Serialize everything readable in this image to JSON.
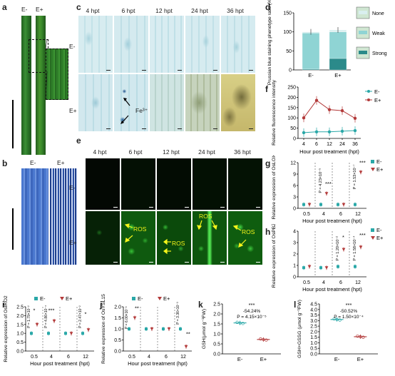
{
  "panel_labels": {
    "a": "a",
    "b": "b",
    "c": "c",
    "d": "d",
    "e": "e",
    "f": "f",
    "g": "g",
    "h": "h",
    "i": "i",
    "j": "j",
    "k": "k",
    "l": "l"
  },
  "groups": {
    "neg": "E-",
    "pos": "E+"
  },
  "timepoints": [
    "4 hpt",
    "6 hpt",
    "12 hpt",
    "24 hpt",
    "36 hpt"
  ],
  "annotations": {
    "fe": "Fe³⁺",
    "ros": "ROS"
  },
  "colors": {
    "neg": "#2aa8a8",
    "pos": "#b33a3a",
    "leaf_green": "#2f7a2a",
    "prussian": "#3a6cc4"
  },
  "d_legend": [
    "None",
    "Weak",
    "Strong"
  ],
  "chart_data": [
    {
      "panel": "d",
      "type": "bar",
      "ylabel": "Prussian blue staining phenotype ratio (%)",
      "ylim": [
        0,
        150
      ],
      "yticks": [
        0,
        50,
        100,
        150
      ],
      "categories": [
        "E-",
        "E+"
      ],
      "series": [
        {
          "name": "Strong",
          "values": [
            2,
            30
          ]
        },
        {
          "name": "Weak",
          "values": [
            95,
            70
          ]
        },
        {
          "name": "None",
          "values": [
            3,
            5
          ]
        }
      ]
    },
    {
      "panel": "f",
      "type": "line",
      "ylabel": "Relative fluorescence intensity",
      "xlabel": "Hour post treatment (hpt)",
      "ylim": [
        0,
        250
      ],
      "yticks": [
        0,
        50,
        100,
        150,
        200,
        250
      ],
      "x": [
        4,
        6,
        12,
        24,
        36
      ],
      "series": [
        {
          "name": "E-",
          "values": [
            28,
            32,
            32,
            35,
            38
          ]
        },
        {
          "name": "E+",
          "values": [
            100,
            185,
            140,
            135,
            98
          ]
        }
      ]
    },
    {
      "panel": "g",
      "type": "scatter",
      "ylabel": "Relative expression of OsLOX2",
      "xlabel": "Hour post treatment (hpt)",
      "ylim": [
        0,
        12
      ],
      "yticks": [
        0,
        3,
        6,
        9,
        12
      ],
      "x": [
        "0.5",
        "4",
        "6",
        "12"
      ],
      "series": [
        {
          "name": "E-",
          "values": [
            1,
            1,
            1,
            1
          ]
        },
        {
          "name": "E+",
          "values": [
            1,
            3.9,
            1,
            9.5
          ]
        }
      ],
      "annotations": [
        "***",
        "P = 4.23×10⁻⁵",
        "***",
        "P = 1.53×10⁻⁷"
      ]
    },
    {
      "panel": "h",
      "type": "scatter",
      "ylabel": "Relative expression of OsPBZ1",
      "xlabel": "Hour post treatment (hpt)",
      "ylim": [
        0,
        4
      ],
      "yticks": [
        0,
        1,
        2,
        3,
        4
      ],
      "x": [
        "0.5",
        "4",
        "6",
        "12"
      ],
      "series": [
        {
          "name": "E-",
          "values": [
            0.8,
            0.8,
            0.9,
            0.9
          ]
        },
        {
          "name": "E+",
          "values": [
            0.9,
            0.8,
            2.4,
            2.6
          ]
        }
      ],
      "annotations": [
        "*",
        "P = 1.20×10⁻²",
        "***",
        "P = 1.58×10⁻⁴"
      ]
    },
    {
      "panel": "i",
      "type": "scatter",
      "ylabel": "Relative expression of OsIRO2",
      "xlabel": "Hour post treatment (hpt)",
      "ylim": [
        0,
        2.5
      ],
      "yticks": [
        0,
        0.5,
        1.0,
        1.5,
        2.0,
        2.5
      ],
      "x": [
        "0.5",
        "4",
        "6",
        "12"
      ],
      "series": [
        {
          "name": "E-",
          "values": [
            1,
            1,
            1,
            1
          ]
        },
        {
          "name": "E+",
          "values": [
            1.5,
            1.7,
            1,
            1.2
          ]
        }
      ],
      "annotations": [
        "*",
        "P = 1.79×10⁻²",
        "***",
        "P = 4.86×10⁻⁴",
        "*",
        "P = 2.47×10⁻²"
      ]
    },
    {
      "panel": "j",
      "type": "scatter",
      "ylabel": "Relative expression of OsYSL15",
      "xlabel": "Hour post treatment (hpt)",
      "ylim": [
        0,
        2.0
      ],
      "yticks": [
        0,
        0.5,
        1.0,
        1.5,
        2.0
      ],
      "x": [
        "0.5",
        "4",
        "6",
        "12"
      ],
      "series": [
        {
          "name": "E-",
          "values": [
            1,
            1,
            1,
            1
          ]
        },
        {
          "name": "E+",
          "values": [
            1.5,
            1,
            1,
            0.2
          ]
        }
      ],
      "annotations": [
        "**",
        "P = 6.00×10⁻³",
        "**",
        "P = 3.36×10⁻³"
      ]
    },
    {
      "panel": "k",
      "type": "scatter",
      "ylabel": "GSH(μmol g⁻¹FW)",
      "ylim": [
        0,
        2.5
      ],
      "yticks": [
        0,
        0.5,
        1.0,
        1.5,
        2.0,
        2.5
      ],
      "categories": [
        "E-",
        "E+"
      ],
      "values": [
        1.55,
        0.72
      ],
      "annotations": [
        "***",
        "-54.24%",
        "P = 4.15×10⁻⁵"
      ]
    },
    {
      "panel": "l",
      "type": "scatter",
      "ylabel": "GSH+GSSG (μmol g⁻¹FW)",
      "ylim": [
        0,
        4.5
      ],
      "yticks": [
        0,
        0.5,
        1.0,
        1.5,
        2.0,
        2.5,
        3.0,
        3.5,
        4.0,
        4.5
      ],
      "categories": [
        "E-",
        "E+"
      ],
      "values": [
        3.1,
        1.55
      ],
      "annotations": [
        "***",
        "-50.52%",
        "P = 1.50×10⁻⁴"
      ]
    }
  ]
}
